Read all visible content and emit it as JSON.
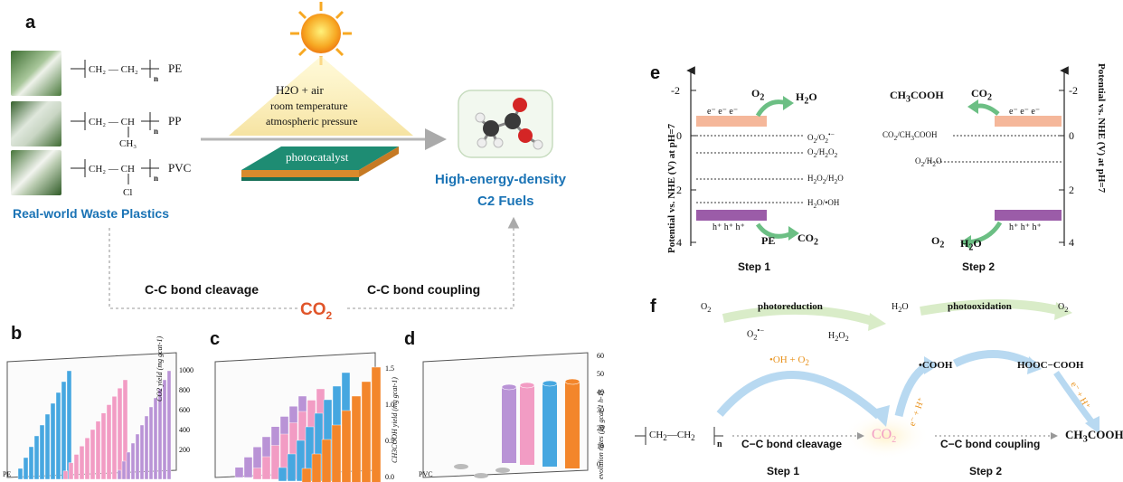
{
  "colors": {
    "accent_blue": "#1a73b5",
    "co2_orange": "#e0552a",
    "conduction": "#f5b79a",
    "valence": "#9b5ca8",
    "arrow_green": "#6cbf84",
    "bar_pink": "#f29cc4",
    "bar_blue": "#46a7e0",
    "bar_purple": "#b993d6",
    "bar_orange": "#f3862b"
  },
  "panel_a": {
    "letter": "a",
    "plastics": [
      {
        "name": "PE"
      },
      {
        "name": "PP",
        "side": "CH3"
      },
      {
        "name": "PVC",
        "side": "Cl"
      }
    ],
    "plastics_label": "Real-world Waste Plastics",
    "conditions": [
      "H2O + air",
      "room temperature",
      "atmospheric pressure"
    ],
    "photocatalyst": "photocatalyst",
    "fuels_line1": "High-energy-density",
    "fuels_line2": "C2 Fuels",
    "cleavage": "C-C bond cleavage",
    "coupling": "C-C bond coupling",
    "co2": "CO2"
  },
  "panel_b": {
    "letter": "b",
    "ylabel": "CO2 yield (mg gcat-1)",
    "ticks": [
      "1000",
      "800",
      "600",
      "400",
      "200"
    ],
    "xlabel": "PE"
  },
  "panel_c": {
    "letter": "c",
    "ylabel": "CH3COOH yield (mg gcat-1)",
    "ticks": [
      "1.5",
      "1.0",
      "0.5",
      "0.0"
    ]
  },
  "panel_d": {
    "letter": "d",
    "ylabel": "evolution rates (μg gcat-1 h-1)",
    "ticks": [
      "60",
      "50",
      "40",
      "30",
      "20",
      "10",
      "0"
    ],
    "xlabel": "PVC"
  },
  "panel_e": {
    "letter": "e",
    "yaxis_label": "Potential vs. NHE (V) at pH=7",
    "ticks": [
      "-2",
      "0",
      "2",
      "4"
    ],
    "electrons": "e⁻  e⁻  e⁻",
    "holes": "h⁺  h⁺  h⁺",
    "step1": {
      "top_reactant": "O2",
      "top_product": "H2O",
      "bottom_reactant": "PE",
      "bottom_product": "CO2",
      "levels": [
        "O2/O2•−",
        "O2/H2O2",
        "H2O2/H2O",
        "H2O/•OH"
      ],
      "label": "Step 1"
    },
    "step2": {
      "top_product": "CH3COOH",
      "top_reactant": "CO2",
      "bottom_product": "O2",
      "bottom_reactant": "H2O",
      "levels": [
        "CO2/CH3COOH",
        "O2/H2O"
      ],
      "label": "Step 2"
    }
  },
  "panel_f": {
    "letter": "f",
    "o2_left": "O2",
    "photoreduction": "photoreduction",
    "superoxide": "O2•−",
    "h2o2": "H2O2",
    "h2o": "H2O",
    "photooxidation": "photooxidation",
    "o2_right": "O2",
    "oh_label": "•OH + O2",
    "cooh": "•COOH",
    "hooc": "HOOC−COOH",
    "e_h_left": "e⁻ + H⁺",
    "e_h_right": "e⁻ + H⁺",
    "chain": "CH2—CH2",
    "n": "n",
    "cleavage": "C−C bond cleavage",
    "co2": "CO2",
    "coupling": "C−C bond coupling",
    "product": "CH3COOH",
    "step1": "Step 1",
    "step2": "Step 2"
  }
}
